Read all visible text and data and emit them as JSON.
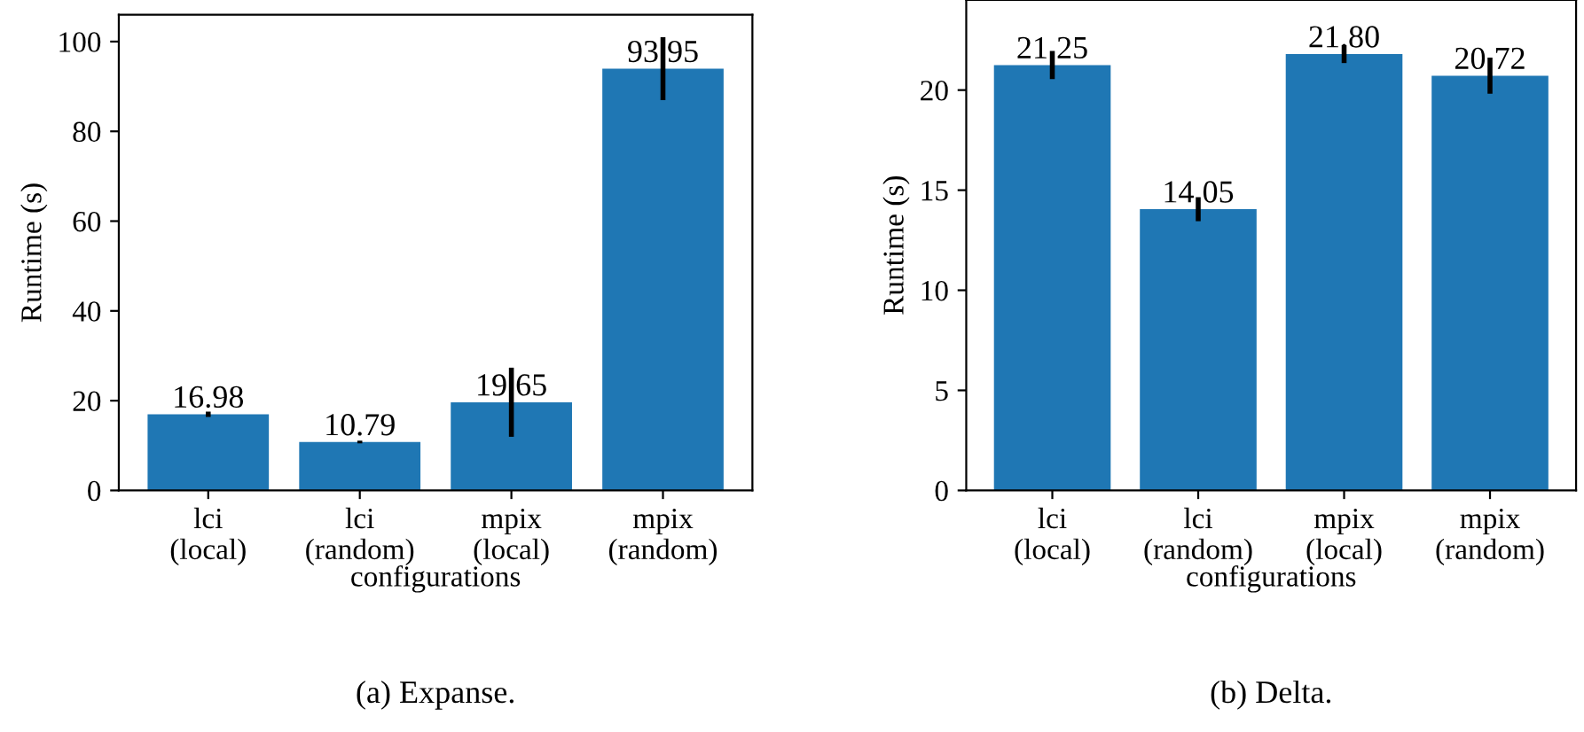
{
  "chart_data": [
    {
      "type": "bar",
      "categories": [
        "lci\n(local)",
        "lci\n(random)",
        "mpix\n(local)",
        "mpix\n(random)"
      ],
      "values": [
        16.98,
        10.79,
        19.65,
        93.95
      ],
      "errors": [
        0.6,
        0.3,
        7.7,
        7.0
      ],
      "color": "#1f77b4",
      "data_labels": true,
      "xlabel": "configurations",
      "ylabel": "Runtime (s)",
      "ylim": [
        0,
        106
      ],
      "yticks": [
        0,
        20,
        40,
        60,
        80,
        100
      ],
      "grid": false,
      "legend": false,
      "annotations": [
        "(a) Expanse."
      ]
    },
    {
      "type": "bar",
      "categories": [
        "lci\n(local)",
        "lci\n(random)",
        "mpix\n(local)",
        "mpix\n(random)"
      ],
      "values": [
        21.25,
        14.05,
        21.8,
        20.72
      ],
      "errors": [
        0.7,
        0.6,
        0.45,
        0.9
      ],
      "value_labels": [
        "21.25",
        "14.05",
        "21.80",
        "20.72"
      ],
      "color": "#1f77b4",
      "xlabel": "configurations",
      "ylabel": "Runtime (s)",
      "ylim": [
        0,
        24.5
      ],
      "yticks": [
        0,
        5,
        10,
        15,
        20
      ],
      "grid": false,
      "legend": false,
      "annotations": [
        "(b) Delta."
      ]
    }
  ]
}
